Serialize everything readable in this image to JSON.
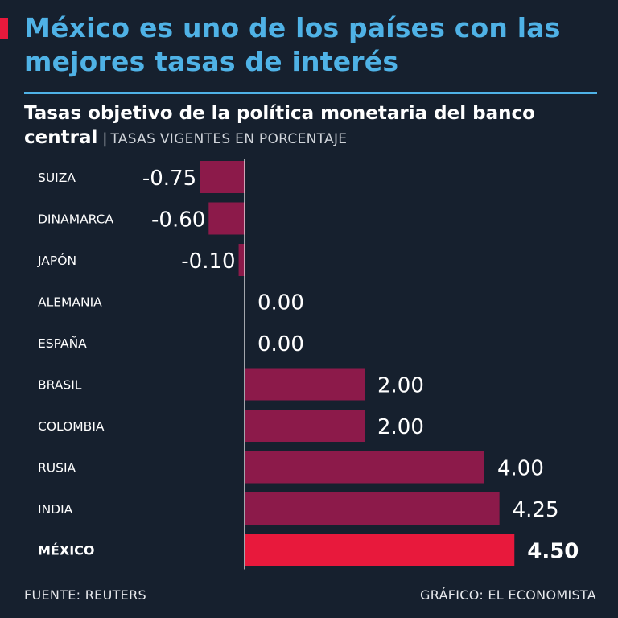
{
  "header": {
    "title": "México es uno de los países con las mejores tasas de interés",
    "subtitle_main": "Tasas objetivo de la política monetaria del banco central",
    "subtitle_separator": "|",
    "subtitle_unit": "TASAS VIGENTES EN PORCENTAJE"
  },
  "footer": {
    "source": "FUENTE: REUTERS",
    "credit": "GRÁFICO: EL ECONOMISTA"
  },
  "colors": {
    "background": "#16202e",
    "title": "#4fb2e6",
    "bar": "#8c1a4a",
    "highlight_bar": "#e8193c",
    "accent": "#e8193c"
  },
  "chart_data": {
    "type": "bar",
    "orientation": "horizontal",
    "title": "Tasas objetivo de la política monetaria del banco central",
    "xlabel": "",
    "ylabel": "",
    "xlim": [
      -0.75,
      4.5
    ],
    "categories": [
      "SUIZA",
      "DINAMARCA",
      "JAPÓN",
      "ALEMANIA",
      "ESPAÑA",
      "BRASIL",
      "COLOMBIA",
      "RUSIA",
      "INDIA",
      "MÉXICO"
    ],
    "values": [
      -0.75,
      -0.6,
      -0.1,
      0.0,
      0.0,
      2.0,
      2.0,
      4.0,
      4.25,
      4.5
    ],
    "labels": [
      "-0.75",
      "-0.60",
      "-0.10",
      "0.00",
      "0.00",
      "2.00",
      "2.00",
      "4.00",
      "4.25",
      "4.50"
    ],
    "highlight": "MÉXICO"
  }
}
